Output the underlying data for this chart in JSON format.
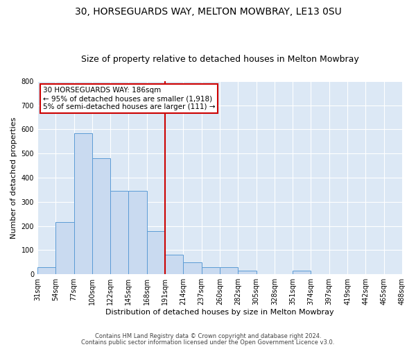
{
  "title": "30, HORSEGUARDS WAY, MELTON MOWBRAY, LE13 0SU",
  "subtitle": "Size of property relative to detached houses in Melton Mowbray",
  "xlabel": "Distribution of detached houses by size in Melton Mowbray",
  "ylabel": "Number of detached properties",
  "categories": [
    "31sqm",
    "54sqm",
    "77sqm",
    "100sqm",
    "122sqm",
    "145sqm",
    "168sqm",
    "191sqm",
    "214sqm",
    "237sqm",
    "260sqm",
    "282sqm",
    "305sqm",
    "328sqm",
    "351sqm",
    "374sqm",
    "397sqm",
    "419sqm",
    "442sqm",
    "465sqm",
    "488sqm"
  ],
  "values": [
    30,
    215,
    585,
    480,
    345,
    345,
    180,
    80,
    50,
    30,
    30,
    15,
    0,
    0,
    15,
    0,
    0,
    0,
    0,
    0
  ],
  "bar_color": "#c9daf0",
  "bar_edge_color": "#5b9bd5",
  "vline_x_index": 7,
  "vline_color": "#cc0000",
  "annotation_text": "30 HORSEGUARDS WAY: 186sqm\n← 95% of detached houses are smaller (1,918)\n5% of semi-detached houses are larger (111) →",
  "annotation_box_color": "#ffffff",
  "annotation_box_edge": "#cc0000",
  "ylim": [
    0,
    800
  ],
  "yticks": [
    0,
    100,
    200,
    300,
    400,
    500,
    600,
    700,
    800
  ],
  "footer1": "Contains HM Land Registry data © Crown copyright and database right 2024.",
  "footer2": "Contains public sector information licensed under the Open Government Licence v3.0.",
  "bg_color": "#dce8f5",
  "fig_bg_color": "#ffffff",
  "grid_color": "#ffffff",
  "title_fontsize": 10,
  "subtitle_fontsize": 9,
  "tick_fontsize": 7,
  "label_fontsize": 8,
  "annotation_fontsize": 7.5
}
